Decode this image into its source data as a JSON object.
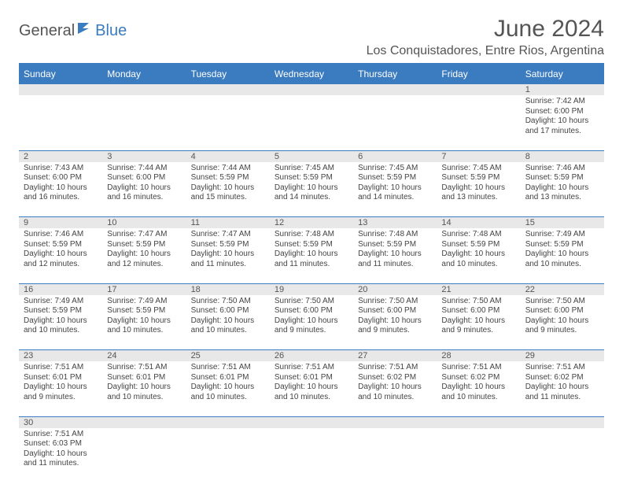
{
  "logo": {
    "part1": "General",
    "part2": "Blue"
  },
  "title": "June 2024",
  "location": "Los Conquistadores, Entre Rios, Argentina",
  "colors": {
    "header_bg": "#3b7bbf",
    "header_text": "#ffffff",
    "daynum_bg": "#e8e8e8",
    "text": "#444444",
    "rule": "#3b7bbf"
  },
  "weekdays": [
    "Sunday",
    "Monday",
    "Tuesday",
    "Wednesday",
    "Thursday",
    "Friday",
    "Saturday"
  ],
  "weeks": [
    [
      null,
      null,
      null,
      null,
      null,
      null,
      {
        "n": "1",
        "sr": "Sunrise: 7:42 AM",
        "ss": "Sunset: 6:00 PM",
        "dl": "Daylight: 10 hours and 17 minutes."
      }
    ],
    [
      {
        "n": "2",
        "sr": "Sunrise: 7:43 AM",
        "ss": "Sunset: 6:00 PM",
        "dl": "Daylight: 10 hours and 16 minutes."
      },
      {
        "n": "3",
        "sr": "Sunrise: 7:44 AM",
        "ss": "Sunset: 6:00 PM",
        "dl": "Daylight: 10 hours and 16 minutes."
      },
      {
        "n": "4",
        "sr": "Sunrise: 7:44 AM",
        "ss": "Sunset: 5:59 PM",
        "dl": "Daylight: 10 hours and 15 minutes."
      },
      {
        "n": "5",
        "sr": "Sunrise: 7:45 AM",
        "ss": "Sunset: 5:59 PM",
        "dl": "Daylight: 10 hours and 14 minutes."
      },
      {
        "n": "6",
        "sr": "Sunrise: 7:45 AM",
        "ss": "Sunset: 5:59 PM",
        "dl": "Daylight: 10 hours and 14 minutes."
      },
      {
        "n": "7",
        "sr": "Sunrise: 7:45 AM",
        "ss": "Sunset: 5:59 PM",
        "dl": "Daylight: 10 hours and 13 minutes."
      },
      {
        "n": "8",
        "sr": "Sunrise: 7:46 AM",
        "ss": "Sunset: 5:59 PM",
        "dl": "Daylight: 10 hours and 13 minutes."
      }
    ],
    [
      {
        "n": "9",
        "sr": "Sunrise: 7:46 AM",
        "ss": "Sunset: 5:59 PM",
        "dl": "Daylight: 10 hours and 12 minutes."
      },
      {
        "n": "10",
        "sr": "Sunrise: 7:47 AM",
        "ss": "Sunset: 5:59 PM",
        "dl": "Daylight: 10 hours and 12 minutes."
      },
      {
        "n": "11",
        "sr": "Sunrise: 7:47 AM",
        "ss": "Sunset: 5:59 PM",
        "dl": "Daylight: 10 hours and 11 minutes."
      },
      {
        "n": "12",
        "sr": "Sunrise: 7:48 AM",
        "ss": "Sunset: 5:59 PM",
        "dl": "Daylight: 10 hours and 11 minutes."
      },
      {
        "n": "13",
        "sr": "Sunrise: 7:48 AM",
        "ss": "Sunset: 5:59 PM",
        "dl": "Daylight: 10 hours and 11 minutes."
      },
      {
        "n": "14",
        "sr": "Sunrise: 7:48 AM",
        "ss": "Sunset: 5:59 PM",
        "dl": "Daylight: 10 hours and 10 minutes."
      },
      {
        "n": "15",
        "sr": "Sunrise: 7:49 AM",
        "ss": "Sunset: 5:59 PM",
        "dl": "Daylight: 10 hours and 10 minutes."
      }
    ],
    [
      {
        "n": "16",
        "sr": "Sunrise: 7:49 AM",
        "ss": "Sunset: 5:59 PM",
        "dl": "Daylight: 10 hours and 10 minutes."
      },
      {
        "n": "17",
        "sr": "Sunrise: 7:49 AM",
        "ss": "Sunset: 5:59 PM",
        "dl": "Daylight: 10 hours and 10 minutes."
      },
      {
        "n": "18",
        "sr": "Sunrise: 7:50 AM",
        "ss": "Sunset: 6:00 PM",
        "dl": "Daylight: 10 hours and 10 minutes."
      },
      {
        "n": "19",
        "sr": "Sunrise: 7:50 AM",
        "ss": "Sunset: 6:00 PM",
        "dl": "Daylight: 10 hours and 9 minutes."
      },
      {
        "n": "20",
        "sr": "Sunrise: 7:50 AM",
        "ss": "Sunset: 6:00 PM",
        "dl": "Daylight: 10 hours and 9 minutes."
      },
      {
        "n": "21",
        "sr": "Sunrise: 7:50 AM",
        "ss": "Sunset: 6:00 PM",
        "dl": "Daylight: 10 hours and 9 minutes."
      },
      {
        "n": "22",
        "sr": "Sunrise: 7:50 AM",
        "ss": "Sunset: 6:00 PM",
        "dl": "Daylight: 10 hours and 9 minutes."
      }
    ],
    [
      {
        "n": "23",
        "sr": "Sunrise: 7:51 AM",
        "ss": "Sunset: 6:01 PM",
        "dl": "Daylight: 10 hours and 9 minutes."
      },
      {
        "n": "24",
        "sr": "Sunrise: 7:51 AM",
        "ss": "Sunset: 6:01 PM",
        "dl": "Daylight: 10 hours and 10 minutes."
      },
      {
        "n": "25",
        "sr": "Sunrise: 7:51 AM",
        "ss": "Sunset: 6:01 PM",
        "dl": "Daylight: 10 hours and 10 minutes."
      },
      {
        "n": "26",
        "sr": "Sunrise: 7:51 AM",
        "ss": "Sunset: 6:01 PM",
        "dl": "Daylight: 10 hours and 10 minutes."
      },
      {
        "n": "27",
        "sr": "Sunrise: 7:51 AM",
        "ss": "Sunset: 6:02 PM",
        "dl": "Daylight: 10 hours and 10 minutes."
      },
      {
        "n": "28",
        "sr": "Sunrise: 7:51 AM",
        "ss": "Sunset: 6:02 PM",
        "dl": "Daylight: 10 hours and 10 minutes."
      },
      {
        "n": "29",
        "sr": "Sunrise: 7:51 AM",
        "ss": "Sunset: 6:02 PM",
        "dl": "Daylight: 10 hours and 11 minutes."
      }
    ],
    [
      {
        "n": "30",
        "sr": "Sunrise: 7:51 AM",
        "ss": "Sunset: 6:03 PM",
        "dl": "Daylight: 10 hours and 11 minutes."
      },
      null,
      null,
      null,
      null,
      null,
      null
    ]
  ]
}
